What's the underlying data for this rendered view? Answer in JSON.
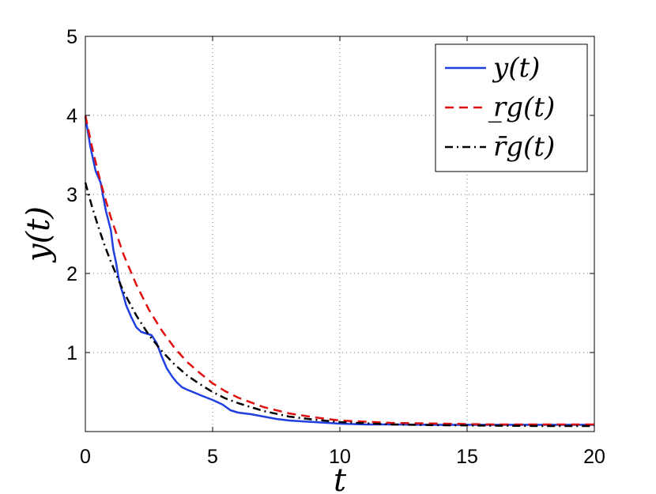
{
  "chart_data": {
    "type": "line",
    "title": "",
    "xlabel": "t",
    "ylabel": "y(t)",
    "xlim": [
      0,
      20
    ],
    "ylim": [
      0,
      5
    ],
    "xticks": [
      0,
      5,
      10,
      15,
      20
    ],
    "xtick_labels": [
      "0",
      "5",
      "10",
      "15",
      "20"
    ],
    "yticks": [
      1,
      2,
      3,
      4,
      5
    ],
    "ytick_labels": [
      "1",
      "2",
      "3",
      "4",
      "5"
    ],
    "grid": true,
    "legend_position": "top-right",
    "series": [
      {
        "name": "y(t)",
        "color": "#1f3fe0",
        "style": "solid",
        "points": [
          [
            0,
            3.98
          ],
          [
            0.2,
            3.6
          ],
          [
            0.4,
            3.3
          ],
          [
            0.6,
            3.15
          ],
          [
            0.8,
            2.8
          ],
          [
            1.0,
            2.55
          ],
          [
            1.1,
            2.3
          ],
          [
            1.2,
            2.15
          ],
          [
            1.3,
            1.95
          ],
          [
            1.4,
            1.82
          ],
          [
            1.5,
            1.72
          ],
          [
            1.6,
            1.6
          ],
          [
            1.8,
            1.45
          ],
          [
            2.0,
            1.32
          ],
          [
            2.2,
            1.26
          ],
          [
            2.4,
            1.24
          ],
          [
            2.6,
            1.22
          ],
          [
            2.8,
            1.12
          ],
          [
            3.0,
            0.95
          ],
          [
            3.2,
            0.8
          ],
          [
            3.4,
            0.7
          ],
          [
            3.6,
            0.62
          ],
          [
            3.8,
            0.56
          ],
          [
            4.0,
            0.53
          ],
          [
            4.3,
            0.49
          ],
          [
            4.6,
            0.45
          ],
          [
            5.0,
            0.4
          ],
          [
            5.4,
            0.34
          ],
          [
            5.7,
            0.27
          ],
          [
            6.0,
            0.24
          ],
          [
            6.5,
            0.22
          ],
          [
            7.0,
            0.19
          ],
          [
            7.5,
            0.16
          ],
          [
            8.0,
            0.14
          ],
          [
            9.0,
            0.12
          ],
          [
            10.0,
            0.1
          ],
          [
            11.0,
            0.09
          ],
          [
            12.0,
            0.09
          ],
          [
            14.0,
            0.085
          ],
          [
            16.0,
            0.085
          ],
          [
            18.0,
            0.085
          ],
          [
            20.0,
            0.085
          ]
        ]
      },
      {
        "name": "r̲g(t)",
        "color": "#e01010",
        "style": "dashed",
        "points": [
          [
            0,
            4.0
          ],
          [
            0.25,
            3.62
          ],
          [
            0.5,
            3.28
          ],
          [
            0.75,
            2.98
          ],
          [
            1.0,
            2.71
          ],
          [
            1.5,
            2.24
          ],
          [
            2.0,
            1.86
          ],
          [
            2.5,
            1.54
          ],
          [
            3.0,
            1.28
          ],
          [
            3.5,
            1.06
          ],
          [
            4.0,
            0.88
          ],
          [
            4.5,
            0.74
          ],
          [
            5.0,
            0.61
          ],
          [
            5.5,
            0.51
          ],
          [
            6.0,
            0.43
          ],
          [
            7.0,
            0.31
          ],
          [
            8.0,
            0.23
          ],
          [
            9.0,
            0.18
          ],
          [
            10.0,
            0.14
          ],
          [
            12.0,
            0.11
          ],
          [
            14.0,
            0.1
          ],
          [
            16.0,
            0.09
          ],
          [
            18.0,
            0.09
          ],
          [
            20.0,
            0.09
          ]
        ]
      },
      {
        "name": "r̄g(t)",
        "color": "#000000",
        "style": "dashdot",
        "points": [
          [
            0,
            3.15
          ],
          [
            0.25,
            2.86
          ],
          [
            0.5,
            2.6
          ],
          [
            0.75,
            2.36
          ],
          [
            1.0,
            2.15
          ],
          [
            1.5,
            1.77
          ],
          [
            2.0,
            1.47
          ],
          [
            2.5,
            1.22
          ],
          [
            3.0,
            1.02
          ],
          [
            3.5,
            0.85
          ],
          [
            4.0,
            0.71
          ],
          [
            4.5,
            0.6
          ],
          [
            5.0,
            0.5
          ],
          [
            5.5,
            0.42
          ],
          [
            6.0,
            0.36
          ],
          [
            7.0,
            0.26
          ],
          [
            8.0,
            0.19
          ],
          [
            9.0,
            0.15
          ],
          [
            10.0,
            0.12
          ],
          [
            12.0,
            0.09
          ],
          [
            14.0,
            0.08
          ],
          [
            16.0,
            0.075
          ],
          [
            18.0,
            0.07
          ],
          [
            20.0,
            0.07
          ]
        ]
      }
    ]
  }
}
